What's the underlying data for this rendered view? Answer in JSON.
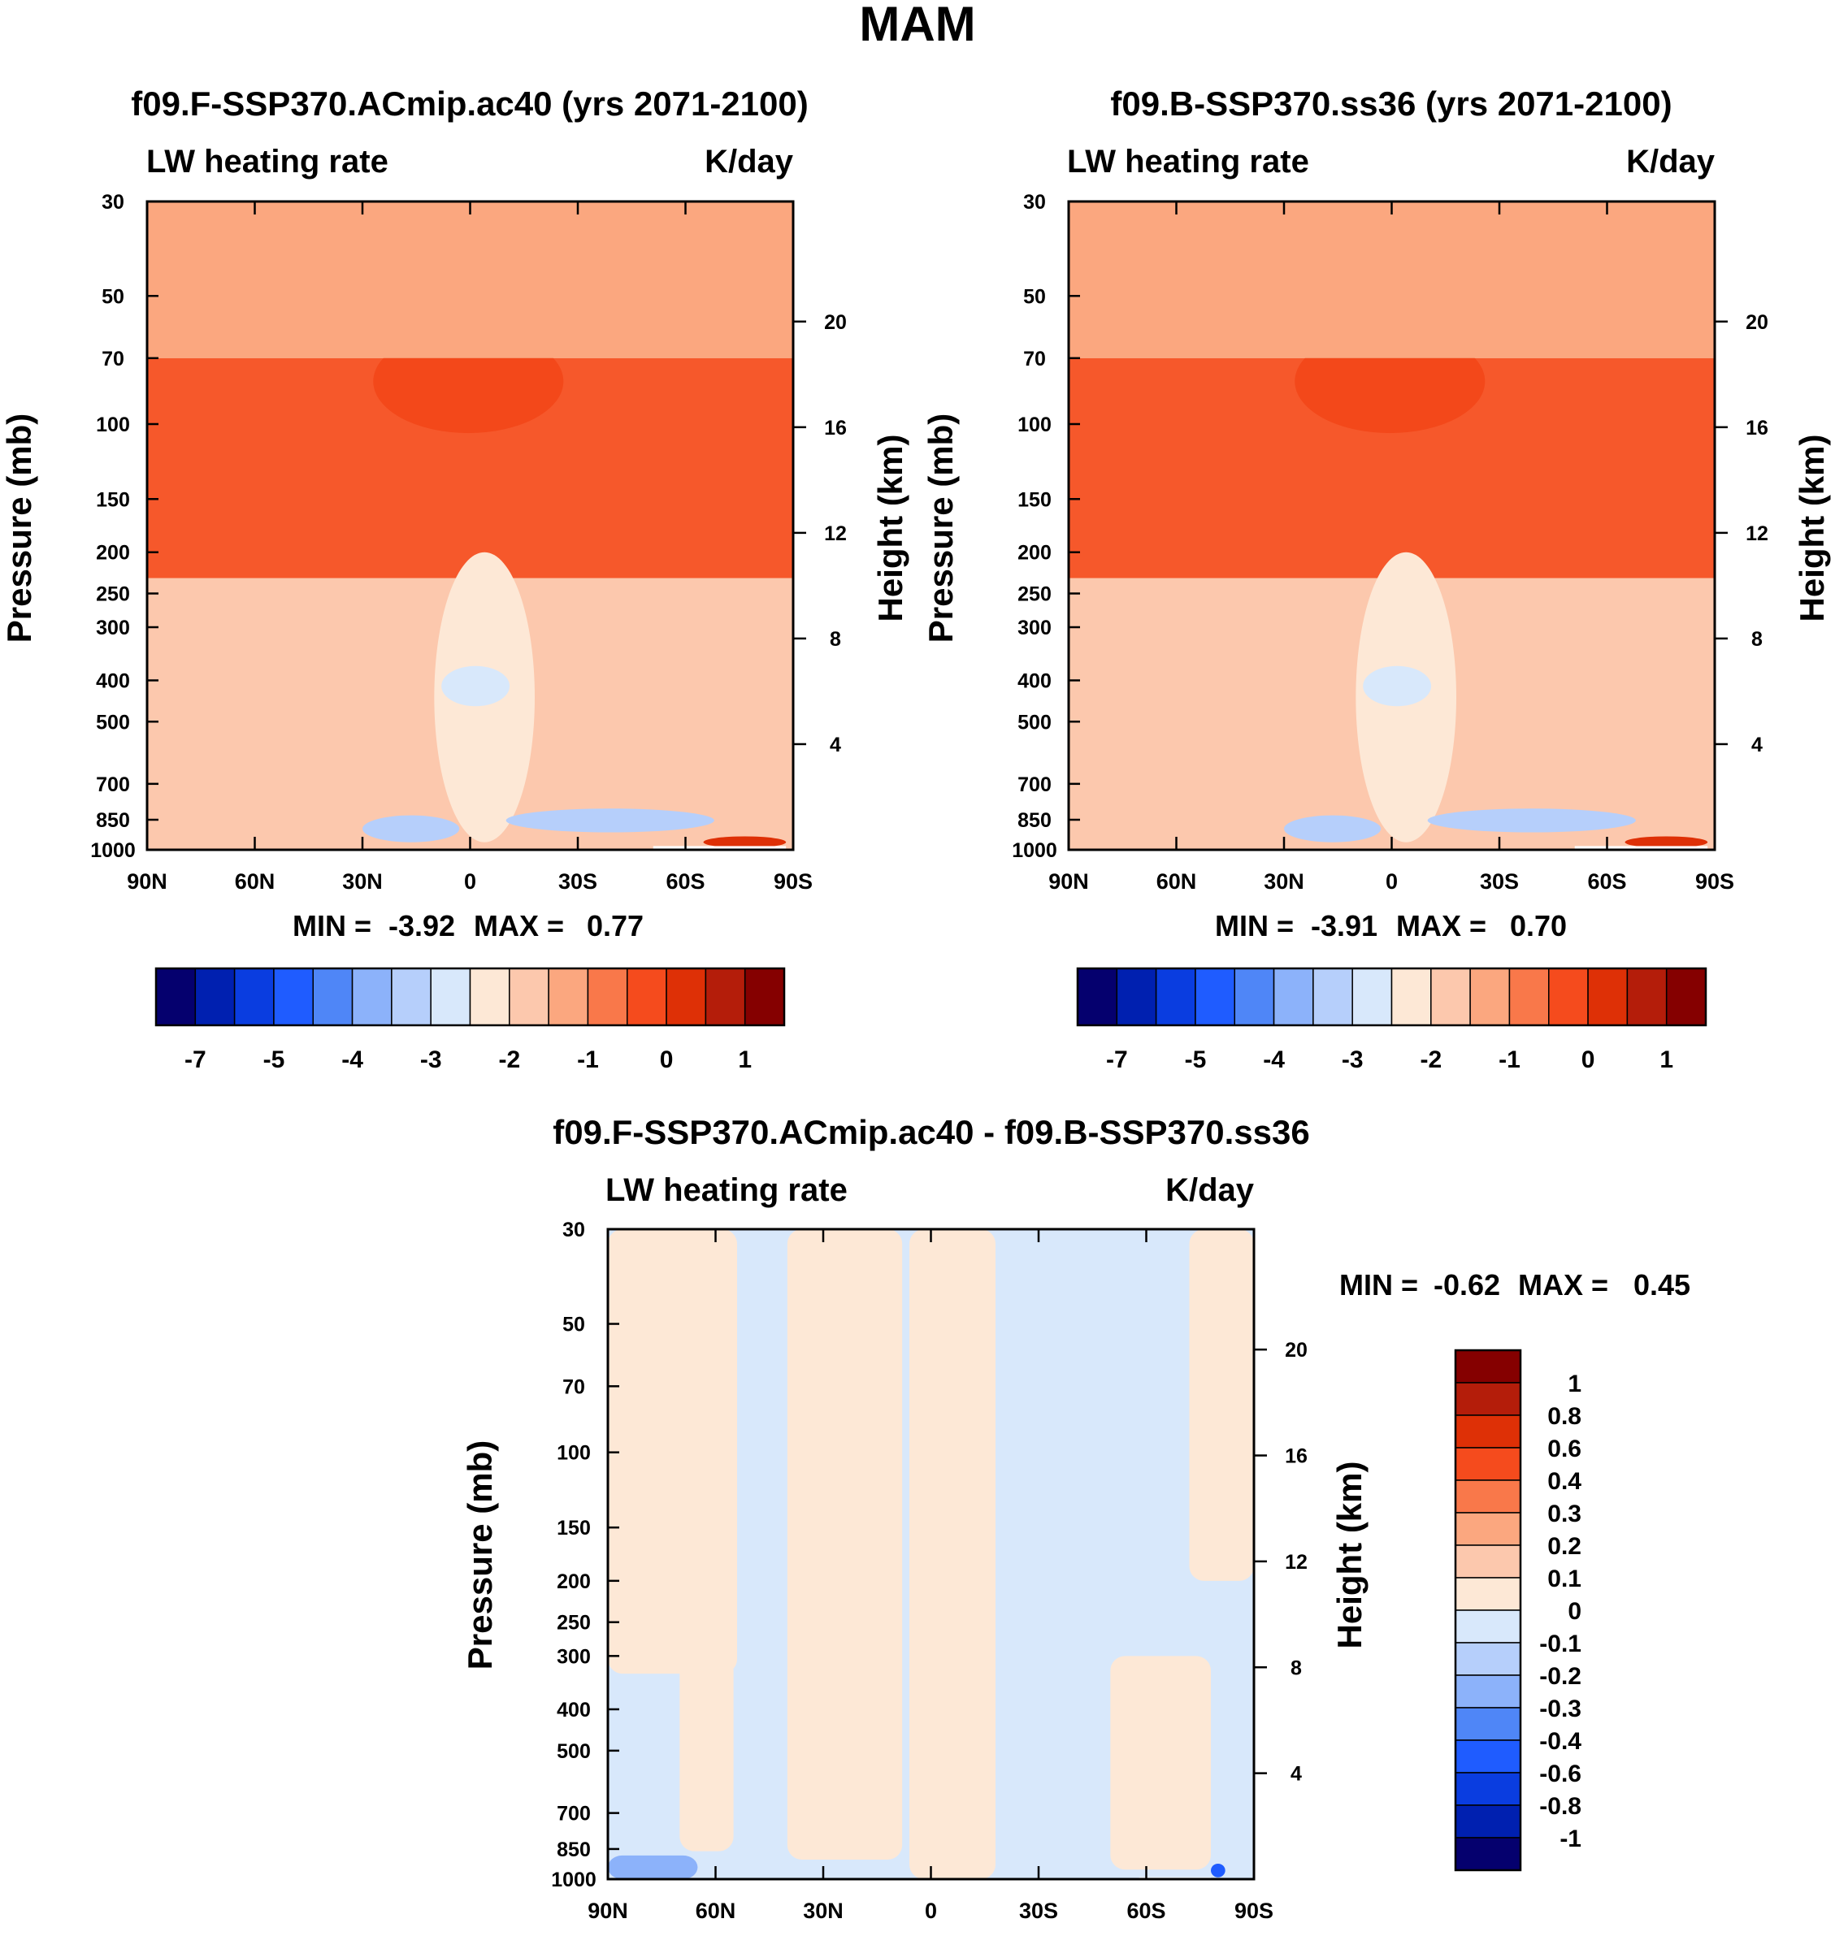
{
  "figure_title": "MAM",
  "colors": {
    "main_scale": [
      "#05006e",
      "#0020b0",
      "#0a3de0",
      "#1f5cff",
      "#4f86f7",
      "#8cb2fa",
      "#b6cffb",
      "#d8e8fb",
      "#fde8d6",
      "#fcc8ad",
      "#fba77f",
      "#f9784a",
      "#f54b1d",
      "#de3006",
      "#b41d0a",
      "#850000"
    ],
    "diff_scale": [
      "#05006e",
      "#0020b0",
      "#0a3de0",
      "#1f5cff",
      "#4f86f7",
      "#8cb2fa",
      "#b6cffb",
      "#d8e8fb",
      "#fde8d6",
      "#fcc8ad",
      "#fba77f",
      "#f9784a",
      "#f54b1d",
      "#de3006",
      "#b41d0a",
      "#850000"
    ]
  },
  "chart_data": [
    {
      "id": "panel1",
      "type": "heatmap",
      "title": "f09.F-SSP370.ACmip.ac40 (yrs 2071-2100)",
      "left_label": "LW heating rate",
      "right_label": "K/day",
      "ylabel": "Pressure (mb)",
      "ylabel_right": "Height (km)",
      "x_ticks": [
        "90N",
        "60N",
        "30N",
        "0",
        "30S",
        "60S",
        "90S"
      ],
      "x_values": [
        90,
        60,
        30,
        0,
        -30,
        -60,
        -90
      ],
      "y_ticks": [
        "30",
        "50",
        "70",
        "100",
        "150",
        "200",
        "250",
        "300",
        "400",
        "500",
        "700",
        "850",
        "1000"
      ],
      "y_values": [
        30,
        50,
        70,
        100,
        150,
        200,
        250,
        300,
        400,
        500,
        700,
        850,
        1000
      ],
      "ylim": [
        1000,
        30
      ],
      "height_ticks": [
        "20",
        "16",
        "12",
        "8",
        "4"
      ],
      "height_values": [
        20,
        16,
        12,
        8,
        4
      ],
      "min_label": "MIN =",
      "min_value": "-3.92",
      "max_label": "MAX =",
      "max_value": "0.77",
      "features": [
        {
          "name": "strong-heating-core-band",
          "color_index": 13,
          "lat_range": [
            27,
            -26
          ],
          "p_range": [
            60,
            105
          ]
        },
        {
          "name": "upper-heating-band",
          "color_index": 12,
          "lat_range": [
            90,
            -90
          ],
          "p_range": [
            70,
            230
          ]
        },
        {
          "name": "tropical-cooling-column",
          "color_index": 8,
          "lat_range": [
            10,
            -18
          ],
          "p_range": [
            200,
            960
          ]
        },
        {
          "name": "mid-troposphere-minimum",
          "color_index": 7,
          "lat_range": [
            8,
            -11
          ],
          "p_range": [
            370,
            460
          ]
        },
        {
          "name": "low-level-minimum-nh",
          "color_index": 6,
          "lat_range": [
            30,
            3
          ],
          "p_range": [
            830,
            960
          ]
        },
        {
          "name": "low-level-minimum-sh",
          "color_index": 6,
          "lat_range": [
            -10,
            -68
          ],
          "p_range": [
            800,
            910
          ]
        },
        {
          "name": "antarctic-surface-heating",
          "color_index": 13,
          "lat_range": [
            -65,
            -88
          ],
          "p_range": [
            930,
            990
          ]
        }
      ],
      "colorbar_labels": [
        "-7",
        "-5",
        "-4",
        "-3",
        "-2",
        "-1",
        "0",
        "1"
      ]
    },
    {
      "id": "panel2",
      "type": "heatmap",
      "title": "f09.B-SSP370.ss36 (yrs 2071-2100)",
      "left_label": "LW heating rate",
      "right_label": "K/day",
      "ylabel": "Pressure (mb)",
      "ylabel_right": "Height (km)",
      "x_ticks": [
        "90N",
        "60N",
        "30N",
        "0",
        "30S",
        "60S",
        "90S"
      ],
      "x_values": [
        90,
        60,
        30,
        0,
        -30,
        -60,
        -90
      ],
      "y_ticks": [
        "30",
        "50",
        "70",
        "100",
        "150",
        "200",
        "250",
        "300",
        "400",
        "500",
        "700",
        "850",
        "1000"
      ],
      "y_values": [
        30,
        50,
        70,
        100,
        150,
        200,
        250,
        300,
        400,
        500,
        700,
        850,
        1000
      ],
      "ylim": [
        1000,
        30
      ],
      "height_ticks": [
        "20",
        "16",
        "12",
        "8",
        "4"
      ],
      "height_values": [
        20,
        16,
        12,
        8,
        4
      ],
      "min_label": "MIN =",
      "min_value": "-3.91",
      "max_label": "MAX =",
      "max_value": "0.70",
      "features": [
        {
          "name": "strong-heating-core-band",
          "color_index": 13,
          "lat_range": [
            27,
            -26
          ],
          "p_range": [
            60,
            105
          ]
        },
        {
          "name": "upper-heating-band",
          "color_index": 12,
          "lat_range": [
            90,
            -90
          ],
          "p_range": [
            70,
            230
          ]
        },
        {
          "name": "tropical-cooling-column",
          "color_index": 8,
          "lat_range": [
            10,
            -18
          ],
          "p_range": [
            200,
            960
          ]
        },
        {
          "name": "mid-troposphere-minimum",
          "color_index": 7,
          "lat_range": [
            8,
            -11
          ],
          "p_range": [
            370,
            460
          ]
        },
        {
          "name": "low-level-minimum-nh",
          "color_index": 6,
          "lat_range": [
            30,
            3
          ],
          "p_range": [
            830,
            960
          ]
        },
        {
          "name": "low-level-minimum-sh",
          "color_index": 6,
          "lat_range": [
            -10,
            -68
          ],
          "p_range": [
            800,
            910
          ]
        },
        {
          "name": "antarctic-surface-heating",
          "color_index": 13,
          "lat_range": [
            -65,
            -88
          ],
          "p_range": [
            930,
            990
          ]
        }
      ],
      "colorbar_labels": [
        "-7",
        "-5",
        "-4",
        "-3",
        "-2",
        "-1",
        "0",
        "1"
      ]
    },
    {
      "id": "panel3",
      "type": "heatmap",
      "title": "f09.F-SSP370.ACmip.ac40 - f09.B-SSP370.ss36",
      "left_label": "LW heating rate",
      "right_label": "K/day",
      "ylabel": "Pressure (mb)",
      "ylabel_right": "Height (km)",
      "x_ticks": [
        "90N",
        "60N",
        "30N",
        "0",
        "30S",
        "60S",
        "90S"
      ],
      "x_values": [
        90,
        60,
        30,
        0,
        -30,
        -60,
        -90
      ],
      "y_ticks": [
        "30",
        "50",
        "70",
        "100",
        "150",
        "200",
        "250",
        "300",
        "400",
        "500",
        "700",
        "850",
        "1000"
      ],
      "y_values": [
        30,
        50,
        70,
        100,
        150,
        200,
        250,
        300,
        400,
        500,
        700,
        850,
        1000
      ],
      "ylim": [
        1000,
        30
      ],
      "height_ticks": [
        "20",
        "16",
        "12",
        "8",
        "4"
      ],
      "height_values": [
        20,
        16,
        12,
        8,
        4
      ],
      "min_label": "MIN =",
      "min_value": "-0.62",
      "max_label": "MAX =",
      "max_value": "0.45",
      "features": [
        {
          "name": "positive-patch-nh-upper",
          "color_index": 8,
          "lat_range": [
            90,
            54
          ],
          "p_range": [
            30,
            330
          ]
        },
        {
          "name": "positive-patch-nh-column",
          "color_index": 8,
          "lat_range": [
            70,
            55
          ],
          "p_range": [
            300,
            860
          ]
        },
        {
          "name": "positive-patch-tropics",
          "color_index": 8,
          "lat_range": [
            40,
            8
          ],
          "p_range": [
            30,
            900
          ]
        },
        {
          "name": "positive-patch-equatorial",
          "color_index": 8,
          "lat_range": [
            6,
            -18
          ],
          "p_range": [
            30,
            1000
          ]
        },
        {
          "name": "positive-patch-sh",
          "color_index": 8,
          "lat_range": [
            -50,
            -78
          ],
          "p_range": [
            300,
            950
          ]
        },
        {
          "name": "positive-patch-sh-upper",
          "color_index": 8,
          "lat_range": [
            -72,
            -90
          ],
          "p_range": [
            30,
            200
          ]
        },
        {
          "name": "negative-patch-arctic-surface",
          "color_index": 5,
          "lat_range": [
            90,
            65
          ],
          "p_range": [
            880,
            1000
          ]
        },
        {
          "name": "negative-patch-antarctic",
          "color_index": 3,
          "lat_range": [
            -78,
            -82
          ],
          "p_range": [
            920,
            990
          ]
        }
      ],
      "colorbar_labels": [
        "1",
        "0.8",
        "0.6",
        "0.4",
        "0.3",
        "0.2",
        "0.1",
        "0",
        "-0.1",
        "-0.2",
        "-0.3",
        "-0.4",
        "-0.6",
        "-0.8",
        "-1"
      ]
    }
  ]
}
